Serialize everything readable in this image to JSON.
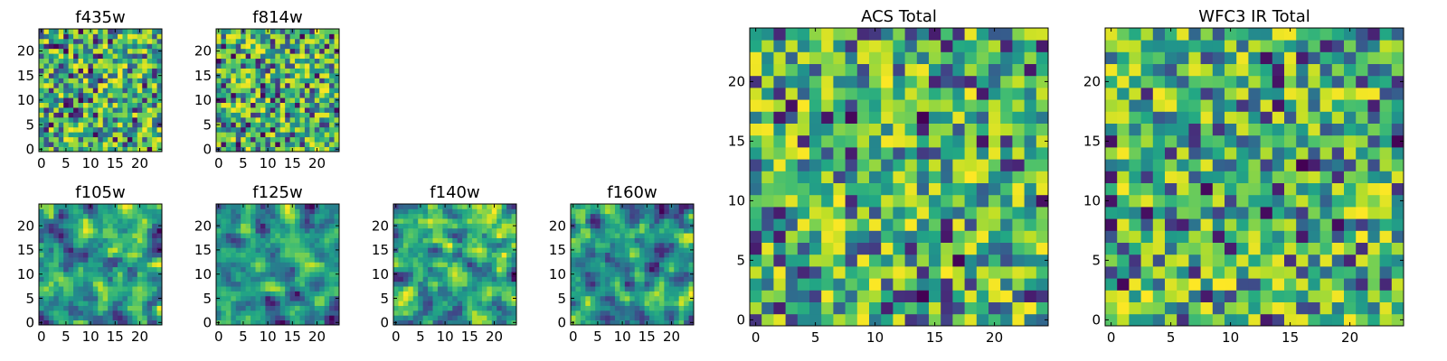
{
  "chart_data": [
    {
      "type": "heatmap",
      "title": "f435w",
      "xticks": [
        0,
        5,
        10,
        15,
        20
      ],
      "yticks": [
        0,
        5,
        10,
        15,
        20
      ],
      "xlim": [
        -0.5,
        24.5
      ],
      "ylim": [
        -0.5,
        24.5
      ],
      "grid_size": 25,
      "colormap": "viridis",
      "seed": 11,
      "smoothing": 0
    },
    {
      "type": "heatmap",
      "title": "f814w",
      "xticks": [
        0,
        5,
        10,
        15,
        20
      ],
      "yticks": [
        0,
        5,
        10,
        15,
        20
      ],
      "xlim": [
        -0.5,
        24.5
      ],
      "ylim": [
        -0.5,
        24.5
      ],
      "grid_size": 25,
      "colormap": "viridis",
      "seed": 23,
      "smoothing": 0
    },
    {
      "type": "heatmap",
      "title": "f105w",
      "xticks": [
        0,
        5,
        10,
        15,
        20
      ],
      "yticks": [
        0,
        5,
        10,
        15,
        20
      ],
      "xlim": [
        -0.5,
        24.5
      ],
      "ylim": [
        -0.5,
        24.5
      ],
      "grid_size": 25,
      "colormap": "viridis",
      "seed": 37,
      "smoothing": 1
    },
    {
      "type": "heatmap",
      "title": "f125w",
      "xticks": [
        0,
        5,
        10,
        15,
        20
      ],
      "yticks": [
        0,
        5,
        10,
        15,
        20
      ],
      "xlim": [
        -0.5,
        24.5
      ],
      "ylim": [
        -0.5,
        24.5
      ],
      "grid_size": 25,
      "colormap": "viridis",
      "seed": 41,
      "smoothing": 1
    },
    {
      "type": "heatmap",
      "title": "f140w",
      "xticks": [
        0,
        5,
        10,
        15,
        20
      ],
      "yticks": [
        0,
        5,
        10,
        15,
        20
      ],
      "xlim": [
        -0.5,
        24.5
      ],
      "ylim": [
        -0.5,
        24.5
      ],
      "grid_size": 25,
      "colormap": "viridis",
      "seed": 53,
      "smoothing": 1
    },
    {
      "type": "heatmap",
      "title": "f160w",
      "xticks": [
        0,
        5,
        10,
        15,
        20
      ],
      "yticks": [
        0,
        5,
        10,
        15,
        20
      ],
      "xlim": [
        -0.5,
        24.5
      ],
      "ylim": [
        -0.5,
        24.5
      ],
      "grid_size": 25,
      "colormap": "viridis",
      "seed": 67,
      "smoothing": 1
    },
    {
      "type": "heatmap",
      "title": "ACS Total",
      "xticks": [
        0,
        5,
        10,
        15,
        20
      ],
      "yticks": [
        0,
        5,
        10,
        15,
        20
      ],
      "xlim": [
        -0.5,
        24.5
      ],
      "ylim": [
        -0.5,
        24.5
      ],
      "grid_size": 25,
      "colormap": "viridis",
      "seed": 79,
      "smoothing": 0
    },
    {
      "type": "heatmap",
      "title": "WFC3 IR Total",
      "xticks": [
        0,
        5,
        10,
        15,
        20
      ],
      "yticks": [
        0,
        5,
        10,
        15,
        20
      ],
      "xlim": [
        -0.5,
        24.5
      ],
      "ylim": [
        -0.5,
        24.5
      ],
      "grid_size": 25,
      "colormap": "viridis",
      "seed": 97,
      "smoothing": 0
    }
  ]
}
